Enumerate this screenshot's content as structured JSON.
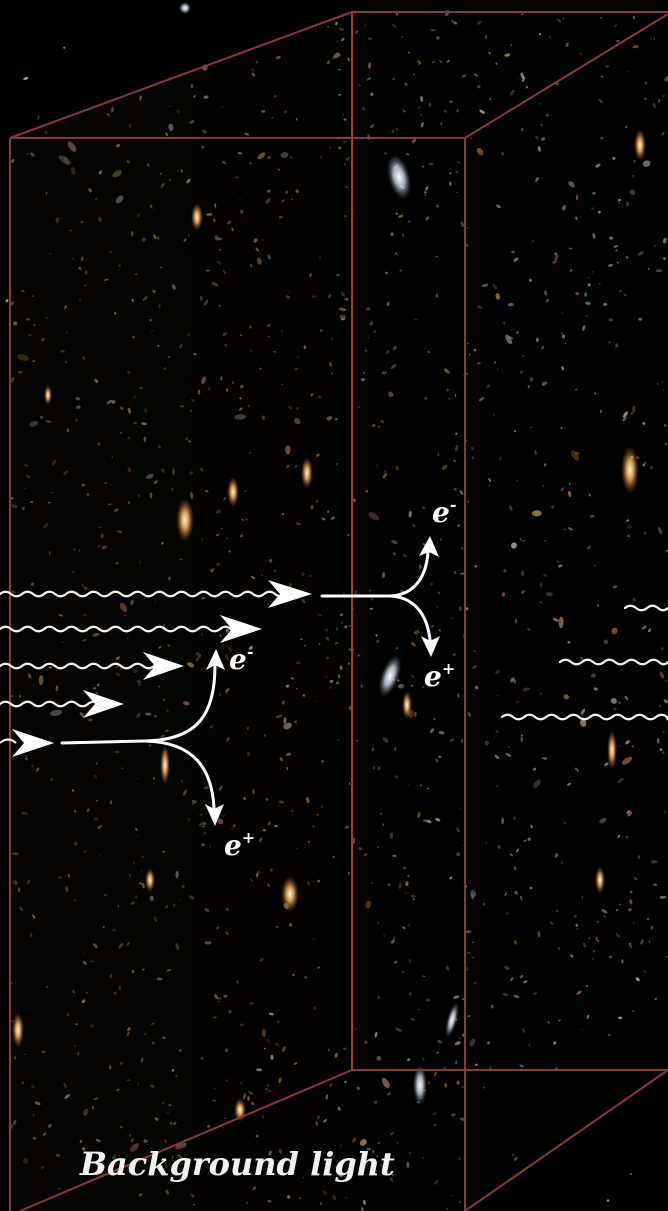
{
  "caption": "Background light",
  "labels": {
    "electron": "e",
    "electron_sign": "-",
    "positron": "e",
    "positron_sign": "+"
  },
  "colors": {
    "background": "#000000",
    "box_edge": "#8a3a34",
    "box_edge_front": "#b0303c",
    "arrow": "#ffffff",
    "galaxy_warm": "#f2b266",
    "galaxy_cool": "#cfd6e8"
  },
  "icons": {
    "photon": "wavy-arrow-icon",
    "pair_production": "branching-arrow-icon"
  }
}
